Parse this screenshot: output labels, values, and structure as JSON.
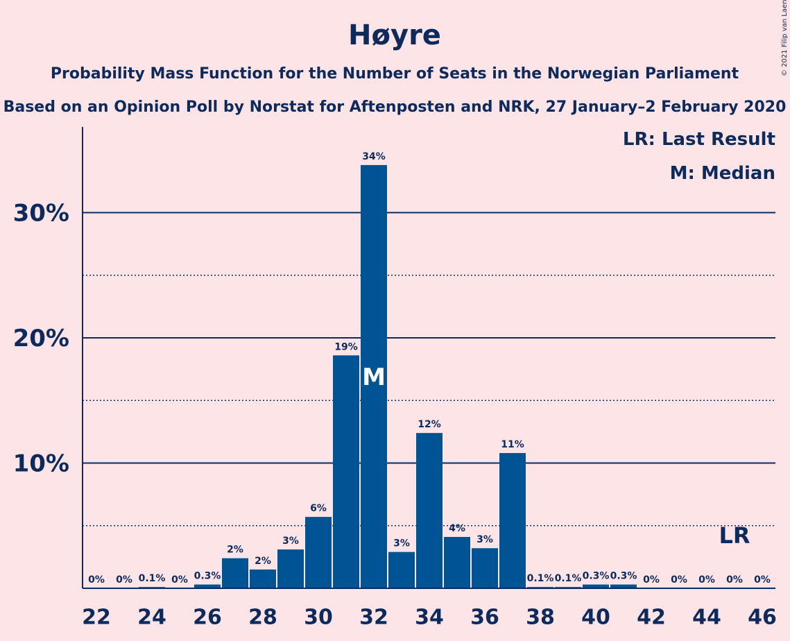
{
  "chart_data": {
    "type": "bar",
    "title": "Høyre",
    "subtitle": "Probability Mass Function for the Number of Seats in the Norwegian Parliament",
    "subtitle2": "Based on an Opinion Poll by Norstat for Aftenposten and NRK, 27 January–2 February 2020",
    "copyright": "© 2021 Filip van Laenen",
    "legend": {
      "placement": "top-right",
      "entries": [
        "LR: Last Result",
        "M: Median"
      ]
    },
    "x": [
      22,
      23,
      24,
      25,
      26,
      27,
      28,
      29,
      30,
      31,
      32,
      33,
      34,
      35,
      36,
      37,
      38,
      39,
      40,
      41,
      42,
      43,
      44,
      45,
      46
    ],
    "values": [
      0,
      0,
      0.1,
      0,
      0.3,
      2.4,
      1.5,
      3.1,
      5.7,
      18.6,
      33.8,
      2.9,
      12.4,
      4.1,
      3.2,
      10.8,
      0.1,
      0.1,
      0.3,
      0.3,
      0,
      0,
      0,
      0,
      0
    ],
    "data_labels": [
      "0%",
      "0%",
      "0.1%",
      "0%",
      "0.3%",
      "2%",
      "2%",
      "3%",
      "6%",
      "19%",
      "34%",
      "3%",
      "12%",
      "4%",
      "3%",
      "11%",
      "0.1%",
      "0.1%",
      "0.3%",
      "0.3%",
      "0%",
      "0%",
      "0%",
      "0%",
      "0%"
    ],
    "x_tick_labels": [
      "22",
      "24",
      "26",
      "28",
      "30",
      "32",
      "34",
      "36",
      "38",
      "40",
      "42",
      "44",
      "46"
    ],
    "y_ticks": [
      10,
      20,
      30
    ],
    "y_tick_labels": [
      "10%",
      "20%",
      "30%"
    ],
    "y_minor_ticks": [
      5,
      15,
      25
    ],
    "ylim": [
      0,
      37
    ],
    "median": 32,
    "median_label": "M",
    "last_result": 45,
    "last_result_label": "LR",
    "colors": {
      "bar": "#005494",
      "text": "#0d2a5c",
      "background": "#fde4e6"
    }
  }
}
